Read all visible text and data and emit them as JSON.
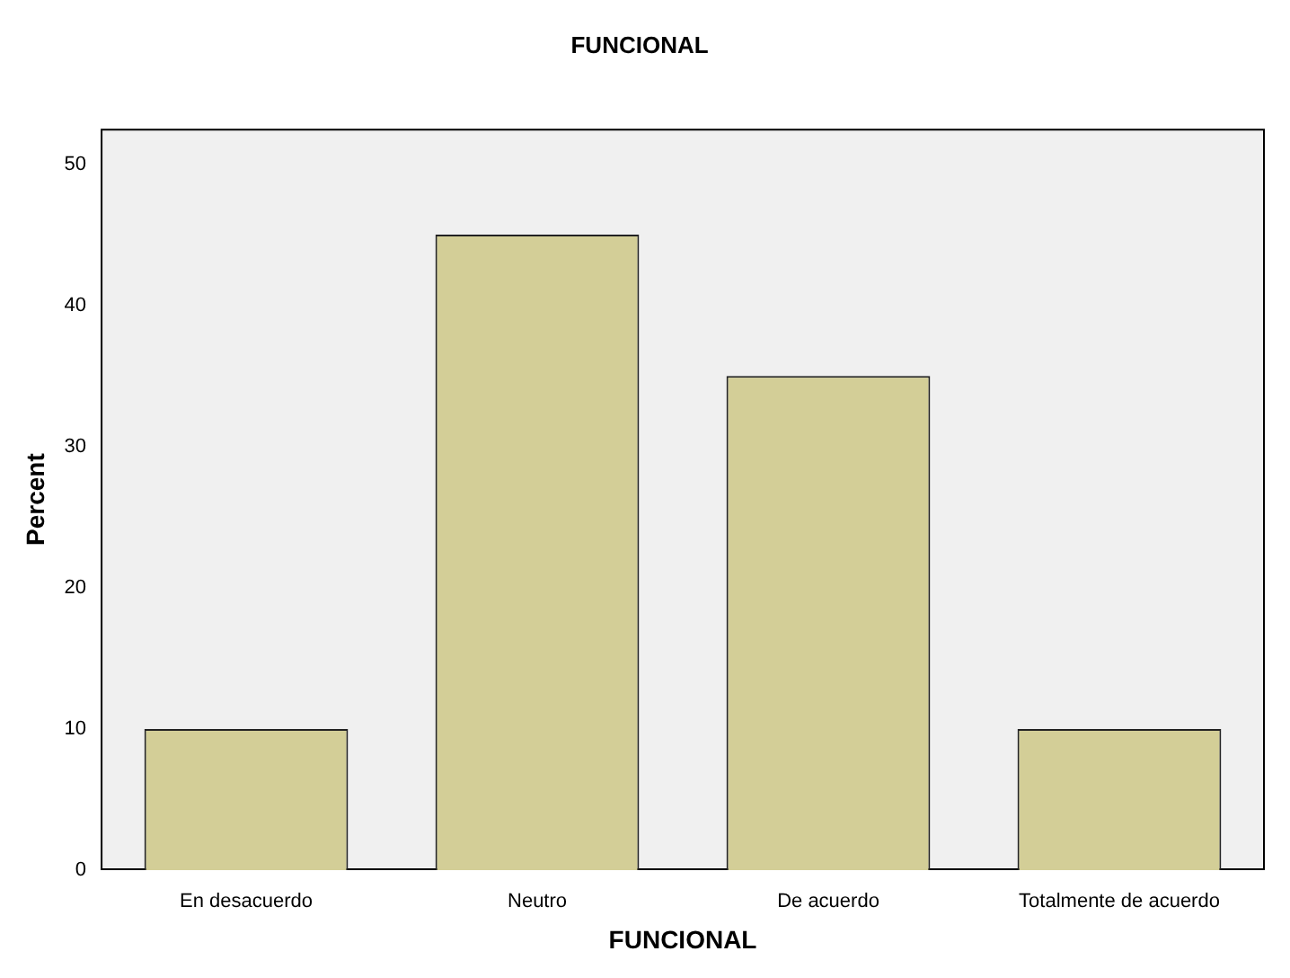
{
  "chart_data": {
    "type": "bar",
    "title": "FUNCIONAL",
    "xlabel": "FUNCIONAL",
    "ylabel": "Percent",
    "categories": [
      "En desacuerdo",
      "Neutro",
      "De acuerdo",
      "Totalmente de acuerdo"
    ],
    "values": [
      10,
      45,
      35,
      10
    ],
    "color": "#d3ce97",
    "ylim": [
      0,
      52.5
    ],
    "yticks": [
      0,
      10,
      20,
      30,
      40,
      50
    ],
    "grid": false,
    "legend": false
  }
}
